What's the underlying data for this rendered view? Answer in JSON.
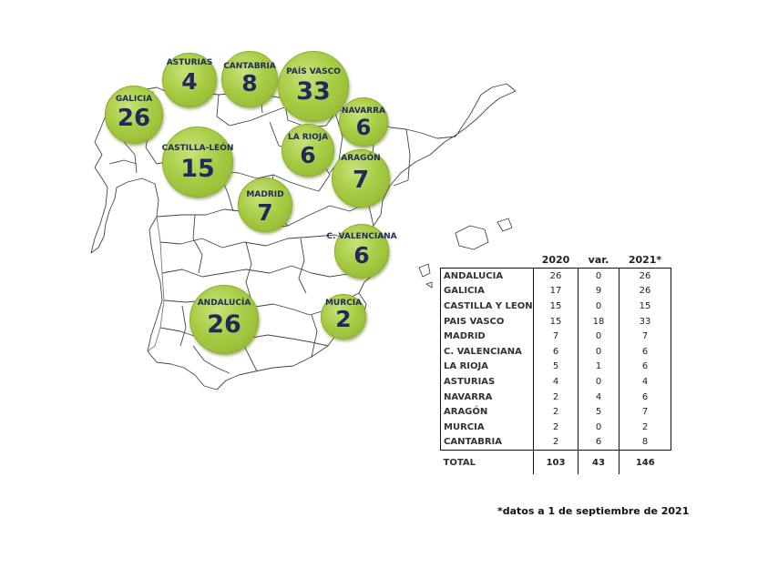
{
  "regions_map": [
    {
      "name": "GALICIA",
      "value": "26"
    },
    {
      "name": "ASTURIAS",
      "value": "4"
    },
    {
      "name": "CANTABRIA",
      "value": "8"
    },
    {
      "name": "PAÍS VASCO",
      "value": "33"
    },
    {
      "name": "NAVARRA",
      "value": "6"
    },
    {
      "name": "CASTILLA-LEÓN",
      "value": "15"
    },
    {
      "name": "LA RIOJA",
      "value": "6"
    },
    {
      "name": "ARAGÓN",
      "value": "7"
    },
    {
      "name": "MADRID",
      "value": "7"
    },
    {
      "name": "C. VALENCIANA",
      "value": "6"
    },
    {
      "name": "ANDALUCÍA",
      "value": "26"
    },
    {
      "name": "MURCIA",
      "value": "2"
    }
  ],
  "table": {
    "headers": [
      "",
      "2020",
      "var.",
      "2021*"
    ],
    "rows": [
      [
        "ANDALUCIA",
        "26",
        "0",
        "26"
      ],
      [
        "GALICIA",
        "17",
        "9",
        "26"
      ],
      [
        "CASTILLA Y LEON",
        "15",
        "0",
        "15"
      ],
      [
        "PAIS VASCO",
        "15",
        "18",
        "33"
      ],
      [
        "MADRID",
        "7",
        "0",
        "7"
      ],
      [
        "C. VALENCIANA",
        "6",
        "0",
        "6"
      ],
      [
        "LA RIOJA",
        "5",
        "1",
        "6"
      ],
      [
        "ASTURIAS",
        "4",
        "0",
        "4"
      ],
      [
        "NAVARRA",
        "2",
        "4",
        "6"
      ],
      [
        "ARAGÓN",
        "2",
        "5",
        "7"
      ],
      [
        "MURCIA",
        "2",
        "0",
        "2"
      ],
      [
        "CANTABRIA",
        "2",
        "6",
        "8"
      ]
    ],
    "total": [
      "TOTAL",
      "103",
      "43",
      "146"
    ]
  },
  "footnote": "*datos a 1 de septiembre de 2021",
  "colors": {
    "bubble": "#a9cc45",
    "text": "#1f2a5c"
  }
}
